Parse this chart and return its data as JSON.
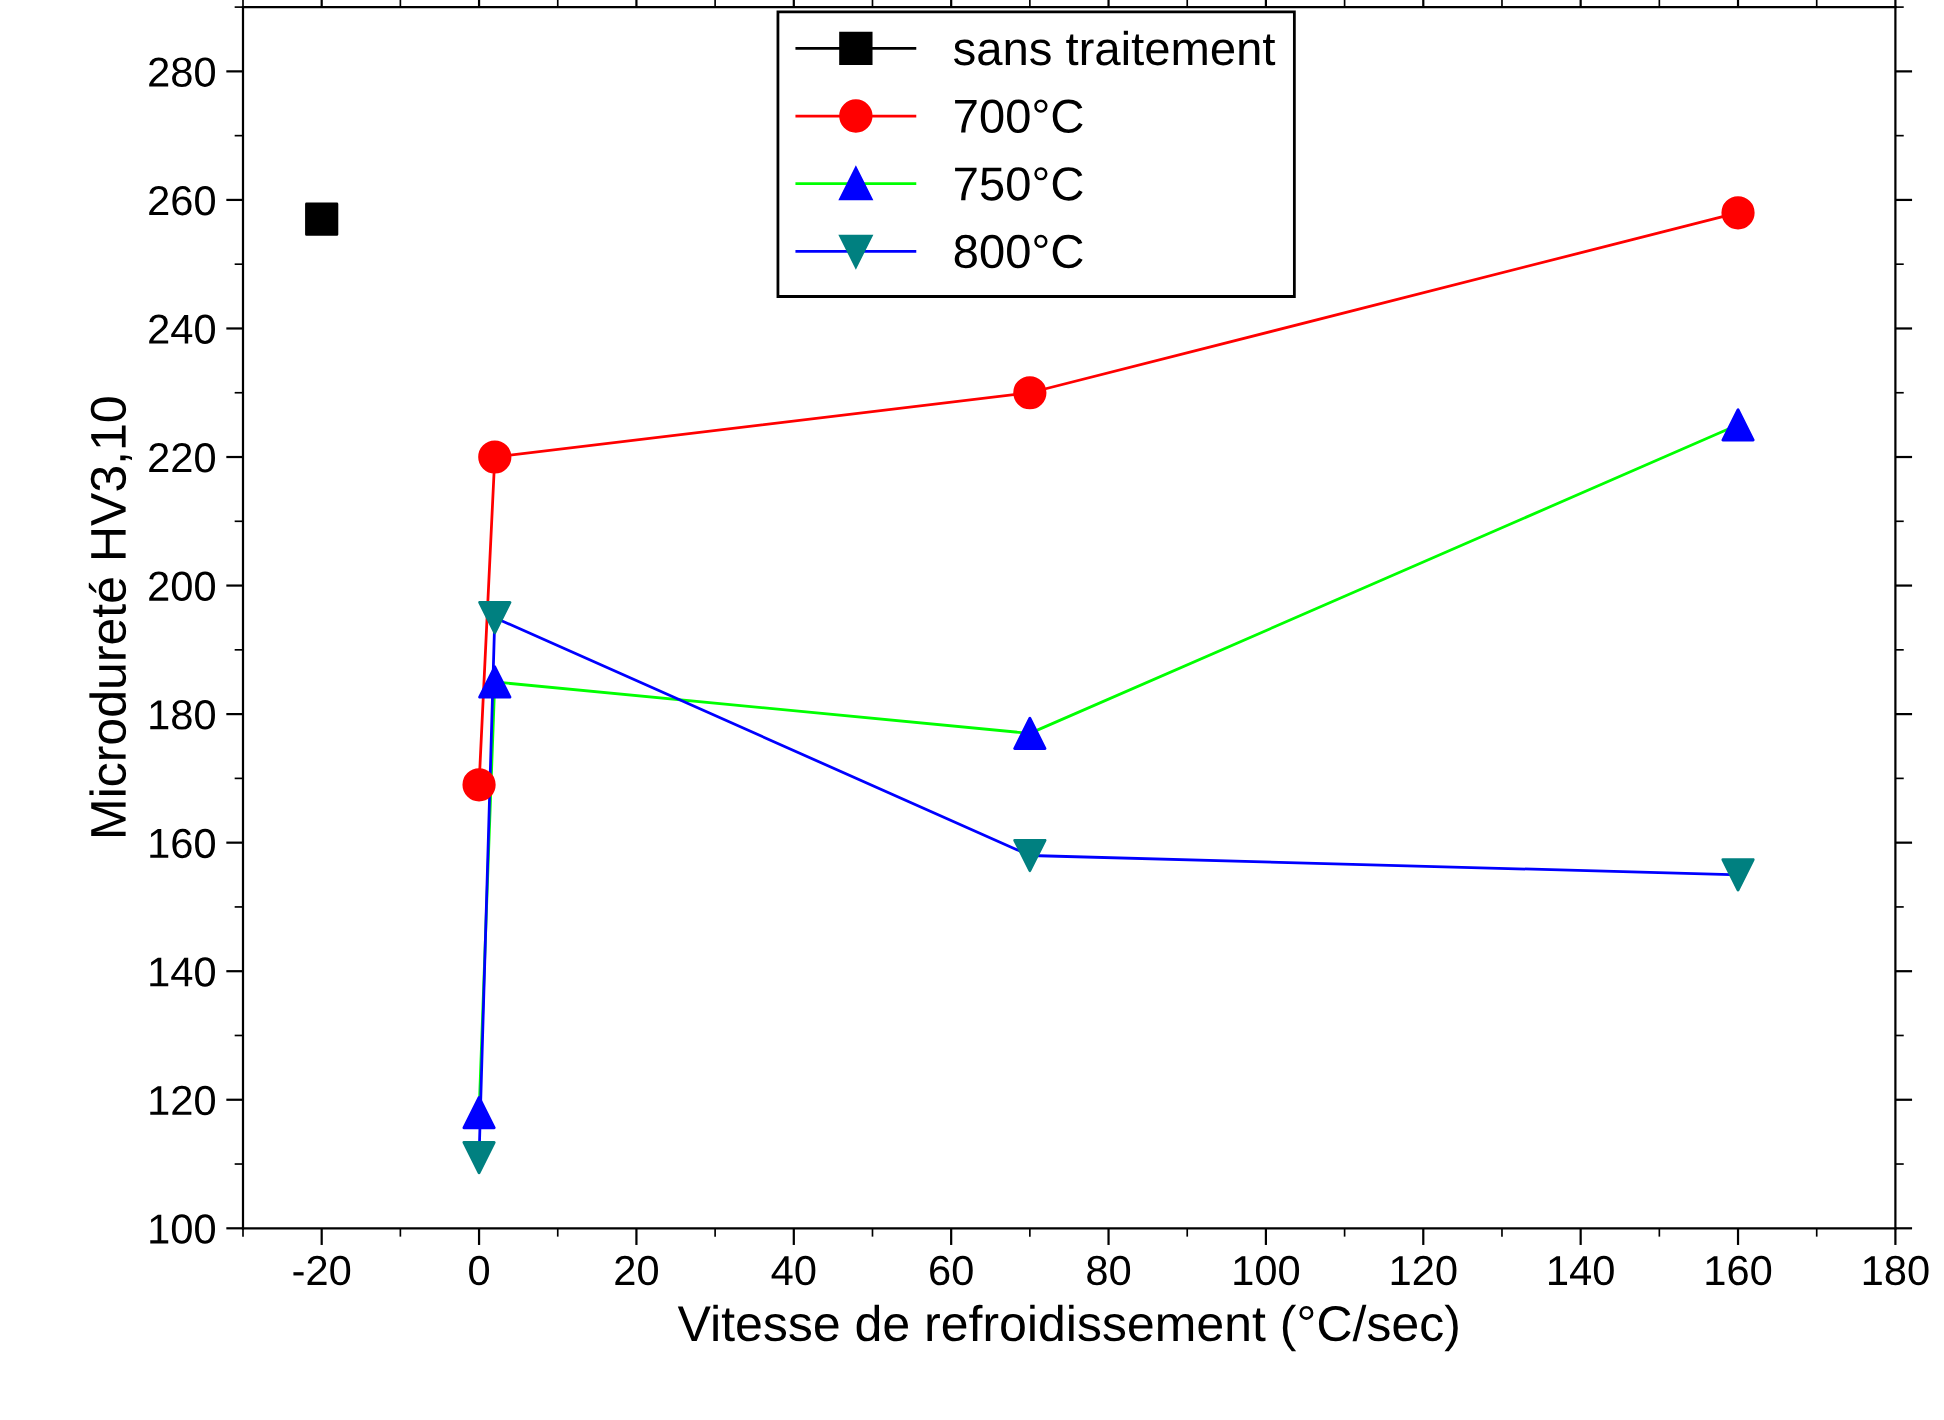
{
  "chart_data": {
    "type": "line",
    "xlabel": "Vitesse de refroidissement (°C/sec)",
    "ylabel": "Microdureté HV3,10",
    "xlim": [
      -30,
      180
    ],
    "xticks": [
      -20,
      0,
      20,
      40,
      60,
      80,
      100,
      120,
      140,
      160,
      180
    ],
    "ylim": [
      100,
      290
    ],
    "yticks": [
      100,
      120,
      140,
      160,
      180,
      200,
      220,
      240,
      260,
      280
    ],
    "grid": false,
    "legend": "top",
    "line_style": "solid",
    "series": [
      {
        "name": "sans traitement",
        "color": "#000000",
        "colors": [
          "#000000"
        ],
        "marker": "square",
        "x": [
          -20
        ],
        "values": [
          257
        ]
      },
      {
        "name": "700°C",
        "color": "#ff0000",
        "colors": [
          "#ff0000",
          "#ff0000",
          "#ff0000",
          "#ff0000"
        ],
        "marker": "circle",
        "x": [
          0,
          2,
          70,
          160
        ],
        "values": [
          169,
          220,
          230,
          258
        ]
      },
      {
        "name": "750°C",
        "color": "#00ff00",
        "colors": [
          "#0000ff",
          "#0000ff",
          "#0000ff",
          "#0000ff"
        ],
        "marker": "triangle",
        "x": [
          0,
          2,
          70,
          160
        ],
        "values": [
          118,
          185,
          177,
          225
        ]
      },
      {
        "name": "800°C",
        "color": "#0000ff",
        "colors": [
          "#008080",
          "#008080",
          "#008080",
          "#008080"
        ],
        "marker": "triangle-down",
        "x": [
          0,
          2,
          70,
          160
        ],
        "values": [
          111,
          195,
          158,
          155
        ]
      }
    ]
  }
}
